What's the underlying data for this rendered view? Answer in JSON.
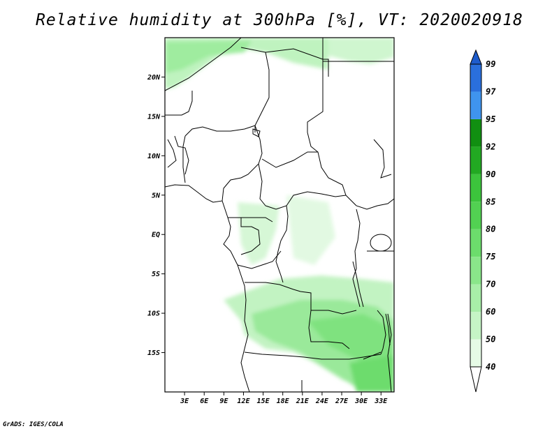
{
  "title": "Relative humidity at 300hPa [%], VT: 2020020918",
  "credit": "GrADS: IGES/COLA",
  "map": {
    "lat_labels": [
      "20N",
      "15N",
      "10N",
      "5N",
      "EQ",
      "5S",
      "10S",
      "15S"
    ],
    "lat_values": [
      20,
      15,
      10,
      5,
      0,
      -5,
      -10,
      -15
    ],
    "lon_labels": [
      "3E",
      "6E",
      "9E",
      "12E",
      "15E",
      "18E",
      "21E",
      "24E",
      "27E",
      "30E",
      "33E"
    ],
    "lon_values": [
      3,
      6,
      9,
      12,
      15,
      18,
      21,
      24,
      27,
      30,
      33
    ],
    "lon_range": [
      0,
      35
    ],
    "lat_range": [
      -20,
      25
    ]
  },
  "colorbar": {
    "labels": [
      "40",
      "50",
      "60",
      "70",
      "75",
      "80",
      "85",
      "90",
      "92",
      "95",
      "97",
      "99"
    ],
    "colors": [
      "#ffffff",
      "#e6fbe6",
      "#c6f5c6",
      "#a8eea8",
      "#8ae68a",
      "#6cdc6c",
      "#52d152",
      "#3cc43c",
      "#22a922",
      "#118f11",
      "#3f94ee",
      "#2a6fdc",
      "#1e5ccc"
    ]
  },
  "colors": {
    "land_outline": "#000000",
    "frame": "#000000"
  }
}
